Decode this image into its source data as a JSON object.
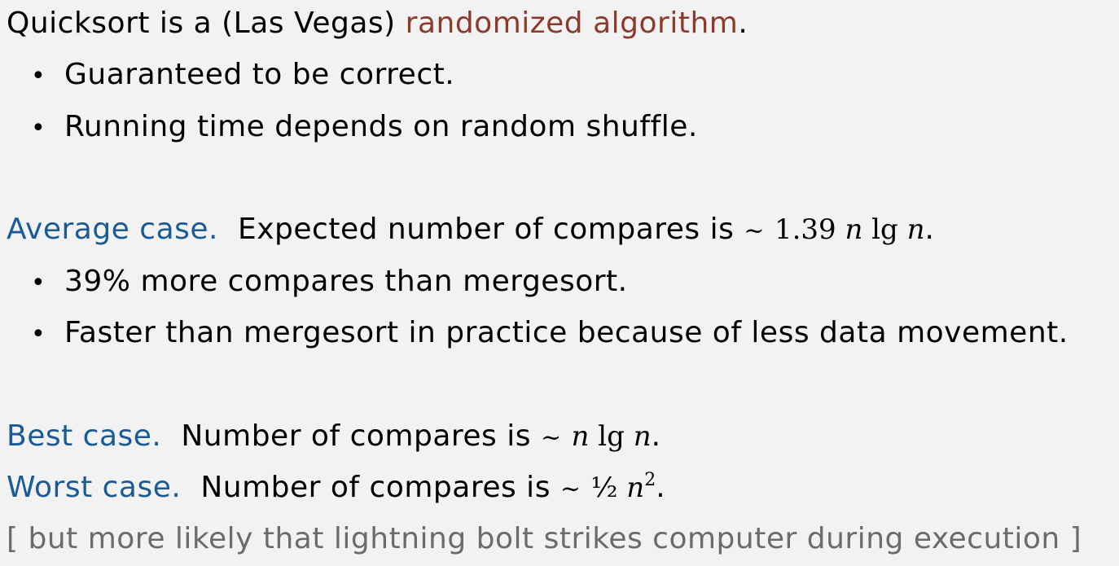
{
  "intro": {
    "prefix": "Quicksort is a (Las Vegas) ",
    "highlight": "randomized algorithm",
    "suffix": ".",
    "bullets": [
      "Guaranteed to be correct.",
      "Running time depends on random shuffle."
    ]
  },
  "average": {
    "label": "Average case.",
    "text": "Expected number of compares is",
    "tilde": "~",
    "coef": "1.39",
    "n1": "n",
    "lg": "lg",
    "n2": "n",
    "period": ".",
    "bullets": [
      "39% more compares than mergesort.",
      "Faster than mergesort in practice because of less data movement."
    ]
  },
  "best": {
    "label": "Best case.",
    "text": "Number of compares is",
    "tilde": "~",
    "n1": "n",
    "lg": "lg",
    "n2": "n",
    "period": "."
  },
  "worst": {
    "label": "Worst case.",
    "text": "Number of compares is",
    "tilde": "~",
    "half": "½",
    "n": "n",
    "exp": "2",
    "period": "."
  },
  "note": "[ but more likely that lightning bolt strikes computer during execution ]",
  "bullet_glyph": "•",
  "colors": {
    "background": "#f2f2f2",
    "highlight_red": "#8b3a2c",
    "label_blue": "#1a5a96",
    "note_gray": "#6b6b6b"
  }
}
